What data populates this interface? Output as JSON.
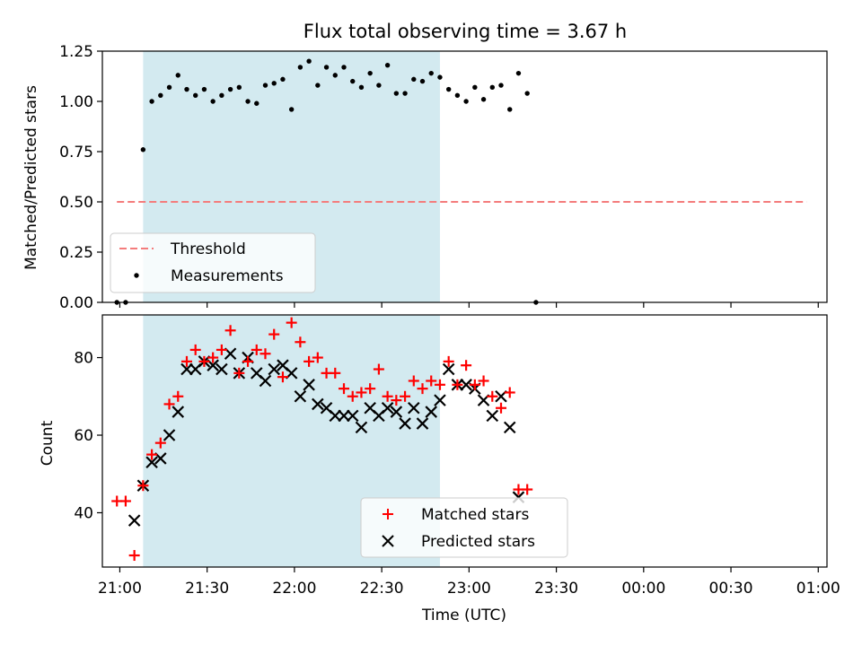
{
  "chart_data": [
    {
      "type": "scatter",
      "title": "Flux total observing time = 3.67 h",
      "xlabel": "",
      "ylabel": "Matched/Predicted stars",
      "xlim": [
        "20:54",
        "01:03"
      ],
      "ylim": [
        0,
        1.25
      ],
      "yticks": [
        "0.00",
        "0.25",
        "0.50",
        "0.75",
        "1.00",
        "1.25"
      ],
      "shaded_span": [
        "21:08",
        "22:50"
      ],
      "shade_color": "#d3eaf0",
      "threshold": {
        "name": "Threshold",
        "value": 0.5,
        "x_from": "20:59",
        "x_to": "00:56",
        "color": "#f47c7c"
      },
      "legend": {
        "position": "lower-left",
        "entries": [
          "Threshold",
          "Measurements"
        ]
      },
      "series": [
        {
          "name": "Measurements",
          "color": "#000000",
          "points": [
            [
              "20:59",
              0.0
            ],
            [
              "21:02",
              0.0
            ],
            [
              "21:08",
              0.76
            ],
            [
              "21:11",
              1.0
            ],
            [
              "21:14",
              1.03
            ],
            [
              "21:17",
              1.07
            ],
            [
              "21:20",
              1.13
            ],
            [
              "21:23",
              1.06
            ],
            [
              "21:26",
              1.03
            ],
            [
              "21:29",
              1.06
            ],
            [
              "21:32",
              1.0
            ],
            [
              "21:35",
              1.03
            ],
            [
              "21:38",
              1.06
            ],
            [
              "21:41",
              1.07
            ],
            [
              "21:44",
              1.0
            ],
            [
              "21:47",
              0.99
            ],
            [
              "21:50",
              1.08
            ],
            [
              "21:53",
              1.09
            ],
            [
              "21:56",
              1.11
            ],
            [
              "21:59",
              0.96
            ],
            [
              "22:02",
              1.17
            ],
            [
              "22:05",
              1.2
            ],
            [
              "22:08",
              1.08
            ],
            [
              "22:11",
              1.17
            ],
            [
              "22:14",
              1.13
            ],
            [
              "22:17",
              1.17
            ],
            [
              "22:20",
              1.1
            ],
            [
              "22:23",
              1.07
            ],
            [
              "22:26",
              1.14
            ],
            [
              "22:29",
              1.08
            ],
            [
              "22:32",
              1.18
            ],
            [
              "22:35",
              1.04
            ],
            [
              "22:38",
              1.04
            ],
            [
              "22:41",
              1.11
            ],
            [
              "22:44",
              1.1
            ],
            [
              "22:47",
              1.14
            ],
            [
              "22:50",
              1.12
            ],
            [
              "22:53",
              1.06
            ],
            [
              "22:56",
              1.03
            ],
            [
              "22:59",
              1.0
            ],
            [
              "23:02",
              1.07
            ],
            [
              "23:05",
              1.01
            ],
            [
              "23:08",
              1.07
            ],
            [
              "23:11",
              1.08
            ],
            [
              "23:14",
              0.96
            ],
            [
              "23:17",
              1.14
            ],
            [
              "23:20",
              1.04
            ],
            [
              "23:23",
              0.0
            ]
          ]
        }
      ]
    },
    {
      "type": "scatter",
      "title": "",
      "xlabel": "Time (UTC)",
      "ylabel": "Count",
      "xticks": [
        "21:00",
        "21:30",
        "22:00",
        "22:30",
        "23:00",
        "23:30",
        "00:00",
        "00:30",
        "01:00"
      ],
      "ylim": [
        26,
        91
      ],
      "yticks": [
        40,
        60,
        80
      ],
      "legend": {
        "position": "lower-center",
        "entries": [
          "Matched stars",
          "Predicted stars"
        ]
      },
      "series": [
        {
          "name": "Matched stars",
          "marker": "plus",
          "color": "#ff0000",
          "points": [
            [
              "20:59",
              43
            ],
            [
              "21:02",
              43
            ],
            [
              "21:05",
              29
            ],
            [
              "21:08",
              47
            ],
            [
              "21:11",
              55
            ],
            [
              "21:14",
              58
            ],
            [
              "21:17",
              68
            ],
            [
              "21:20",
              70
            ],
            [
              "21:23",
              79
            ],
            [
              "21:26",
              82
            ],
            [
              "21:29",
              79
            ],
            [
              "21:32",
              80
            ],
            [
              "21:35",
              82
            ],
            [
              "21:38",
              87
            ],
            [
              "21:41",
              76
            ],
            [
              "21:44",
              79
            ],
            [
              "21:47",
              82
            ],
            [
              "21:50",
              81
            ],
            [
              "21:53",
              86
            ],
            [
              "21:56",
              75
            ],
            [
              "21:59",
              89
            ],
            [
              "22:02",
              84
            ],
            [
              "22:05",
              79
            ],
            [
              "22:08",
              80
            ],
            [
              "22:11",
              76
            ],
            [
              "22:14",
              76
            ],
            [
              "22:17",
              72
            ],
            [
              "22:20",
              70
            ],
            [
              "22:23",
              71
            ],
            [
              "22:26",
              72
            ],
            [
              "22:29",
              77
            ],
            [
              "22:32",
              70
            ],
            [
              "22:35",
              69
            ],
            [
              "22:38",
              70
            ],
            [
              "22:41",
              74
            ],
            [
              "22:44",
              72
            ],
            [
              "22:47",
              74
            ],
            [
              "22:50",
              73
            ],
            [
              "22:53",
              79
            ],
            [
              "22:56",
              73
            ],
            [
              "22:59",
              78
            ],
            [
              "23:02",
              73
            ],
            [
              "23:05",
              74
            ],
            [
              "23:08",
              70
            ],
            [
              "23:11",
              67
            ],
            [
              "23:14",
              71
            ],
            [
              "23:17",
              46
            ],
            [
              "23:20",
              46
            ]
          ]
        },
        {
          "name": "Predicted stars",
          "marker": "x",
          "color": "#000000",
          "points": [
            [
              "21:05",
              38
            ],
            [
              "21:08",
              47
            ],
            [
              "21:11",
              53
            ],
            [
              "21:14",
              54
            ],
            [
              "21:17",
              60
            ],
            [
              "21:20",
              66
            ],
            [
              "21:23",
              77
            ],
            [
              "21:26",
              77
            ],
            [
              "21:29",
              79
            ],
            [
              "21:32",
              78
            ],
            [
              "21:35",
              77
            ],
            [
              "21:38",
              81
            ],
            [
              "21:41",
              76
            ],
            [
              "21:44",
              80
            ],
            [
              "21:47",
              76
            ],
            [
              "21:50",
              74
            ],
            [
              "21:53",
              77
            ],
            [
              "21:56",
              78
            ],
            [
              "21:59",
              76
            ],
            [
              "22:02",
              70
            ],
            [
              "22:05",
              73
            ],
            [
              "22:08",
              68
            ],
            [
              "22:11",
              67
            ],
            [
              "22:14",
              65
            ],
            [
              "22:17",
              65
            ],
            [
              "22:20",
              65
            ],
            [
              "22:23",
              62
            ],
            [
              "22:26",
              67
            ],
            [
              "22:29",
              65
            ],
            [
              "22:32",
              67
            ],
            [
              "22:35",
              66
            ],
            [
              "22:38",
              63
            ],
            [
              "22:41",
              67
            ],
            [
              "22:44",
              63
            ],
            [
              "22:47",
              66
            ],
            [
              "22:50",
              69
            ],
            [
              "22:53",
              77
            ],
            [
              "22:56",
              73
            ],
            [
              "22:59",
              73
            ],
            [
              "23:02",
              72
            ],
            [
              "23:05",
              69
            ],
            [
              "23:08",
              65
            ],
            [
              "23:11",
              70
            ],
            [
              "23:14",
              62
            ],
            [
              "23:17",
              44
            ]
          ]
        }
      ]
    }
  ]
}
